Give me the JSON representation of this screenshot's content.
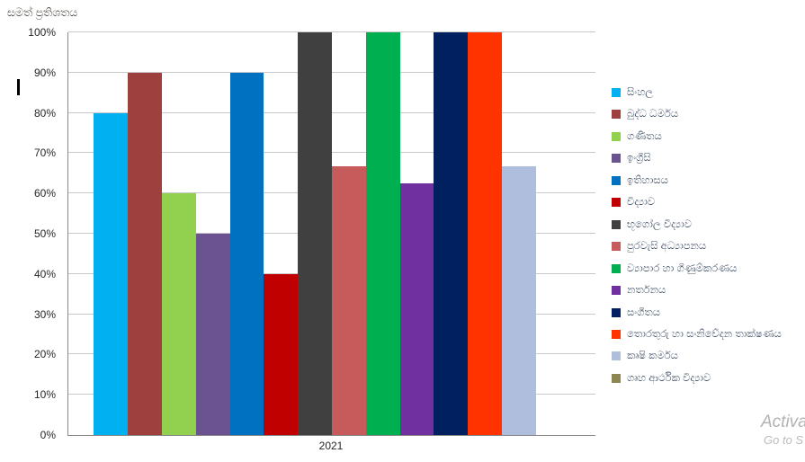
{
  "chart_data": {
    "type": "bar",
    "title": "සමත් ප්‍රතිශතය",
    "categories": [
      "2021"
    ],
    "series": [
      {
        "name": "සිංහල",
        "slug": "sinhala",
        "value": 80,
        "color": "#00B0F0"
      },
      {
        "name": "බුද්ධ ධර්මය",
        "slug": "buddhism",
        "value": 90,
        "color": "#9E413E"
      },
      {
        "name": "ගණිතය",
        "slug": "mathematics",
        "value": 60,
        "color": "#92D050"
      },
      {
        "name": "ඉංග්‍රීසි",
        "slug": "english",
        "value": 50,
        "color": "#6B5291"
      },
      {
        "name": "ඉතිහාසය",
        "slug": "history",
        "value": 90,
        "color": "#0070C0"
      },
      {
        "name": "විද්‍යාව",
        "slug": "science",
        "value": 40,
        "color": "#C00000"
      },
      {
        "name": "භූගෝල විද්‍යාව",
        "slug": "geography",
        "value": 100,
        "color": "#404040"
      },
      {
        "name": "පුරවැසි අධ්‍යාපනය",
        "slug": "civic-education",
        "value": 66.7,
        "color": "#C75B5B"
      },
      {
        "name": "ව්‍යාපාර හා ගිණුම්කරණය",
        "slug": "business-accounting",
        "value": 100,
        "color": "#00B050"
      },
      {
        "name": "නර්තනය",
        "slug": "dancing",
        "value": 62.5,
        "color": "#7030A0"
      },
      {
        "name": "සංගීතය",
        "slug": "music",
        "value": 100,
        "color": "#002060"
      },
      {
        "name": "තොරතුරු හා සංනිවේදන තාක්ෂණය",
        "slug": "ict",
        "value": 100,
        "color": "#FF3300"
      },
      {
        "name": "කෘෂි කර්මය",
        "slug": "agriculture",
        "value": 66.7,
        "color": "#AFBEDC"
      },
      {
        "name": "ගෘහ ආර්ථික විද්‍යාව",
        "slug": "home-economics",
        "value": 0,
        "color": "#8C8750"
      }
    ],
    "xlabel": "",
    "ylabel": "",
    "ylim": [
      0,
      100
    ],
    "yticks": [
      "0%",
      "10%",
      "20%",
      "30%",
      "40%",
      "50%",
      "60%",
      "70%",
      "80%",
      "90%",
      "100%"
    ],
    "grid": true,
    "legend_position": "right",
    "colors": {
      "gridline": "#C8C8C8",
      "axis_line": "#8A8A8A",
      "tick_text": "#262626",
      "legend_text": "#44546A",
      "title_text": "#4A453D"
    }
  },
  "watermark": {
    "line1": "Activa",
    "line2": "Go to S"
  }
}
